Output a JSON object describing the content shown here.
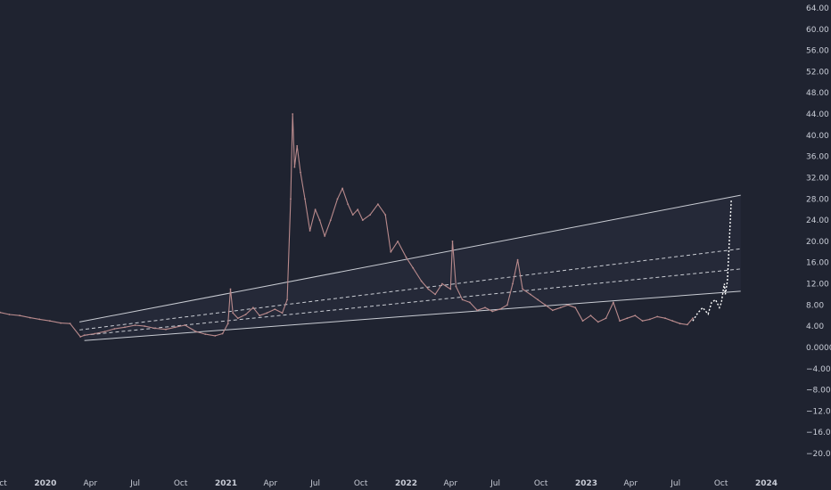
{
  "chart_data": {
    "type": "line",
    "title": "",
    "xlabel": "",
    "ylabel": "",
    "ylim": [
      -22,
      66
    ],
    "xlim": [
      "2019-10-01",
      "2024-01-20"
    ],
    "grid": false,
    "colors": {
      "background": "#1f2330",
      "price": "#b98a8c",
      "trendline": "#c9ccd3",
      "channel_fill": "#2a3040",
      "projection": "#ffffff",
      "axis_text": "#c8ccd6"
    },
    "y_ticks": [
      "64.00",
      "60.00",
      "56.00",
      "52.00",
      "48.00",
      "44.00",
      "40.00",
      "36.00",
      "32.00",
      "28.00",
      "24.00",
      "20.00",
      "16.00",
      "12.00",
      "8.00",
      "4.00",
      "0.0000",
      "−4.00",
      "−8.00",
      "−12.00",
      "−16.00",
      "−20.00"
    ],
    "y_tick_values": [
      64,
      60,
      56,
      52,
      48,
      44,
      40,
      36,
      32,
      28,
      24,
      20,
      16,
      12,
      8,
      4,
      0,
      -4,
      -8,
      -12,
      -16,
      -20
    ],
    "x_ticks": [
      {
        "label": "Oct",
        "date": "2019-10-01",
        "year": false
      },
      {
        "label": "2020",
        "date": "2020-01-01",
        "year": true
      },
      {
        "label": "Apr",
        "date": "2020-04-01",
        "year": false
      },
      {
        "label": "Jul",
        "date": "2020-07-01",
        "year": false
      },
      {
        "label": "Oct",
        "date": "2020-10-01",
        "year": false
      },
      {
        "label": "2021",
        "date": "2021-01-01",
        "year": true
      },
      {
        "label": "Apr",
        "date": "2021-04-01",
        "year": false
      },
      {
        "label": "Jul",
        "date": "2021-07-01",
        "year": false
      },
      {
        "label": "Oct",
        "date": "2021-10-01",
        "year": false
      },
      {
        "label": "2022",
        "date": "2022-01-01",
        "year": true
      },
      {
        "label": "Apr",
        "date": "2022-04-01",
        "year": false
      },
      {
        "label": "Jul",
        "date": "2022-07-01",
        "year": false
      },
      {
        "label": "Oct",
        "date": "2022-10-01",
        "year": false
      },
      {
        "label": "2023",
        "date": "2023-01-01",
        "year": true
      },
      {
        "label": "Apr",
        "date": "2023-04-01",
        "year": false
      },
      {
        "label": "Jul",
        "date": "2023-07-01",
        "year": false
      },
      {
        "label": "Oct",
        "date": "2023-10-01",
        "year": false
      },
      {
        "label": "2024",
        "date": "2024-01-01",
        "year": true
      }
    ],
    "series": [
      {
        "kind": "price",
        "x": [
          "2019-10-01",
          "2019-10-20",
          "2019-11-10",
          "2019-12-01",
          "2019-12-20",
          "2020-01-10",
          "2020-02-01",
          "2020-02-20",
          "2020-03-12",
          "2020-03-20",
          "2020-04-10",
          "2020-05-01",
          "2020-05-20",
          "2020-06-10",
          "2020-07-01",
          "2020-07-20",
          "2020-08-10",
          "2020-09-01",
          "2020-09-20",
          "2020-10-10",
          "2020-11-01",
          "2020-11-20",
          "2020-12-10",
          "2020-12-25",
          "2021-01-05",
          "2021-01-10",
          "2021-01-15",
          "2021-01-25",
          "2021-02-10",
          "2021-02-25",
          "2021-03-10",
          "2021-03-25",
          "2021-04-10",
          "2021-04-25",
          "2021-05-05",
          "2021-05-12",
          "2021-05-16",
          "2021-05-20",
          "2021-05-25",
          "2021-06-01",
          "2021-06-10",
          "2021-06-20",
          "2021-07-01",
          "2021-07-10",
          "2021-07-20",
          "2021-08-01",
          "2021-08-15",
          "2021-08-25",
          "2021-09-05",
          "2021-09-15",
          "2021-09-25",
          "2021-10-05",
          "2021-10-20",
          "2021-11-05",
          "2021-11-20",
          "2021-12-01",
          "2021-12-15",
          "2022-01-01",
          "2022-01-15",
          "2022-02-01",
          "2022-02-15",
          "2022-03-01",
          "2022-03-15",
          "2022-04-01",
          "2022-04-05",
          "2022-04-12",
          "2022-04-25",
          "2022-05-10",
          "2022-05-25",
          "2022-06-10",
          "2022-06-25",
          "2022-07-10",
          "2022-07-25",
          "2022-08-05",
          "2022-08-15",
          "2022-08-25",
          "2022-09-10",
          "2022-09-25",
          "2022-10-10",
          "2022-10-25",
          "2022-11-10",
          "2022-11-25",
          "2022-12-10",
          "2022-12-25",
          "2023-01-10",
          "2023-01-25",
          "2023-02-10",
          "2023-02-25",
          "2023-03-10",
          "2023-03-25",
          "2023-04-10",
          "2023-04-25",
          "2023-05-10",
          "2023-05-25",
          "2023-06-10",
          "2023-06-25",
          "2023-07-10",
          "2023-07-25",
          "2023-08-05"
        ],
        "y": [
          6.6,
          6.2,
          6.0,
          5.6,
          5.3,
          5.0,
          4.6,
          4.5,
          2.0,
          2.3,
          2.6,
          3.0,
          3.5,
          3.8,
          4.2,
          4.0,
          3.6,
          3.4,
          3.8,
          4.2,
          3.0,
          2.5,
          2.2,
          2.6,
          4.5,
          11.0,
          6.5,
          5.5,
          6.2,
          7.5,
          6.0,
          6.5,
          7.2,
          6.5,
          9.0,
          28.0,
          44.0,
          34.0,
          38.0,
          33.0,
          28.0,
          22.0,
          26.0,
          24.0,
          21.0,
          24.0,
          28.0,
          30.0,
          27.0,
          25.0,
          26.0,
          24.0,
          25.0,
          27.0,
          25.0,
          18.0,
          20.0,
          17.0,
          15.0,
          12.5,
          11.0,
          10.0,
          12.0,
          11.0,
          20.0,
          11.5,
          9.0,
          8.5,
          7.0,
          7.5,
          6.8,
          7.2,
          8.0,
          12.0,
          16.5,
          11.0,
          10.0,
          9.0,
          8.0,
          7.0,
          7.5,
          8.0,
          7.5,
          5.0,
          6.0,
          4.8,
          5.5,
          8.5,
          5.0,
          5.5,
          6.0,
          5.0,
          5.3,
          5.8,
          5.5,
          5.0,
          4.5,
          4.3,
          5.5
        ]
      },
      {
        "kind": "projection",
        "x": [
          "2023-08-05",
          "2023-08-15",
          "2023-08-25",
          "2023-09-05",
          "2023-09-12",
          "2023-09-20",
          "2023-09-28",
          "2023-10-02",
          "2023-10-06",
          "2023-10-08",
          "2023-10-10",
          "2023-10-14",
          "2023-10-17",
          "2023-10-20",
          "2023-10-22"
        ],
        "y": [
          5.0,
          6.5,
          7.5,
          6.3,
          8.5,
          9.0,
          7.5,
          8.5,
          11.0,
          12.0,
          10.0,
          12.5,
          18.0,
          24.0,
          28.0
        ]
      },
      {
        "kind": "trendline",
        "x": [
          "2020-03-10",
          "2023-11-10"
        ],
        "y": [
          4.8,
          28.7
        ]
      },
      {
        "kind": "trendline",
        "x": [
          "2020-03-20",
          "2023-11-10"
        ],
        "y": [
          1.3,
          10.6
        ]
      },
      {
        "kind": "trendline-dashed",
        "x": [
          "2020-03-10",
          "2023-11-10"
        ],
        "y": [
          3.3,
          18.6
        ]
      },
      {
        "kind": "trendline-dashed",
        "x": [
          "2020-03-20",
          "2023-11-10"
        ],
        "y": [
          2.3,
          14.8
        ]
      }
    ]
  }
}
